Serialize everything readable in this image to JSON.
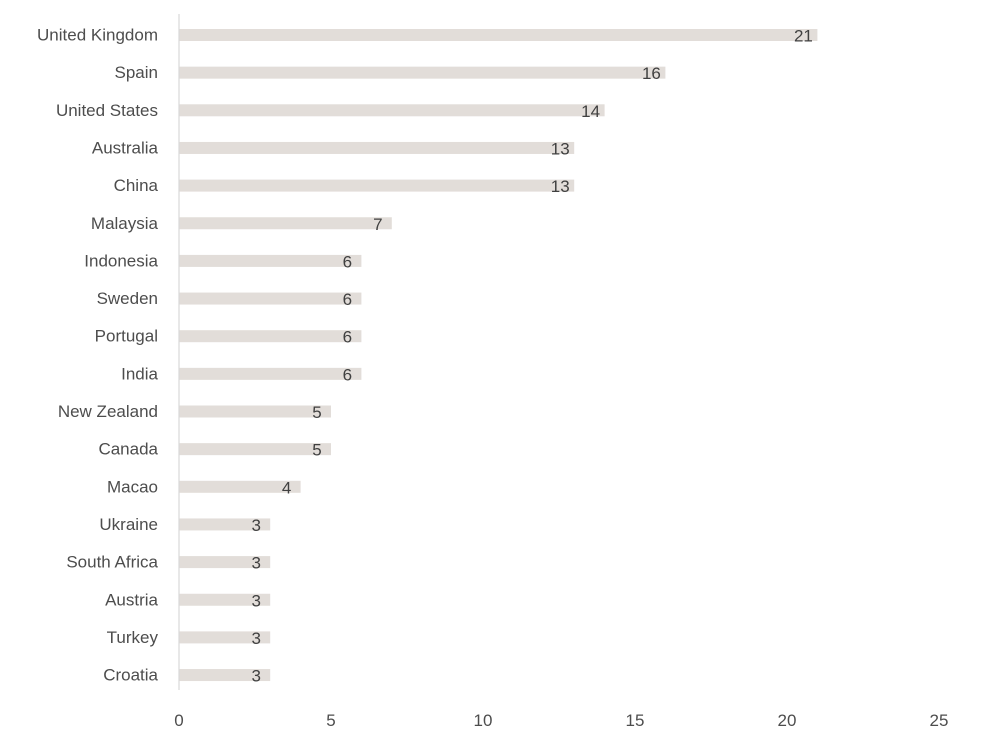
{
  "chart_data": {
    "type": "bar",
    "orientation": "horizontal",
    "title": "",
    "xlabel": "",
    "ylabel": "",
    "categories": [
      "United Kingdom",
      "Spain",
      "United States",
      "Australia",
      "China",
      "Malaysia",
      "Indonesia",
      "Sweden",
      "Portugal",
      "India",
      "New Zealand",
      "Canada",
      "Macao",
      "Ukraine",
      "South Africa",
      "Austria",
      "Turkey",
      "Croatia"
    ],
    "values": [
      21,
      16,
      14,
      13,
      13,
      7,
      6,
      6,
      6,
      6,
      5,
      5,
      4,
      3,
      3,
      3,
      3,
      3
    ],
    "xlim": [
      0,
      25
    ],
    "xticks": [
      "0",
      "5",
      "10",
      "15",
      "20",
      "25"
    ],
    "grid": false,
    "legend": "none",
    "colors": {
      "bar": "#e2ddd9",
      "axis": "#d9d9d9",
      "text": "#4d4d4d",
      "value_text": "#404040"
    }
  }
}
